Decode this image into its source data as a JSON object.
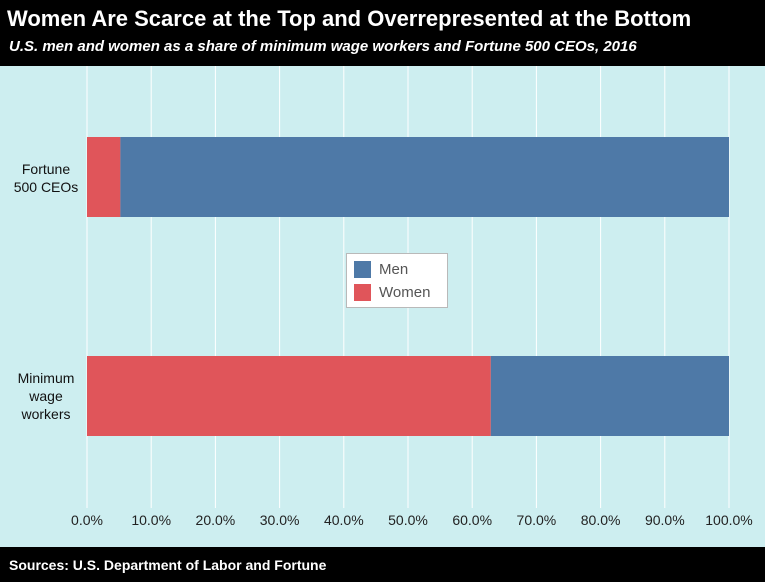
{
  "chart_data": {
    "type": "bar",
    "orientation": "horizontal",
    "stacked": true,
    "title": "Women Are Scarce at the Top and Overrepresented at the Bottom",
    "subtitle": "U.S. men and women as a share of minimum wage workers and Fortune 500 CEOs, 2016",
    "source": "Sources: U.S. Department of Labor and Fortune",
    "categories": [
      "Fortune\n500 CEOs",
      "Minimum\nwage\nworkers"
    ],
    "series": [
      {
        "name": "Women",
        "color": "#e0555a",
        "values": [
          5.2,
          62.9
        ]
      },
      {
        "name": "Men",
        "color": "#4e79a7",
        "values": [
          94.8,
          37.1
        ]
      }
    ],
    "xlim": [
      0,
      100
    ],
    "x_ticks": [
      0,
      10,
      20,
      30,
      40,
      50,
      60,
      70,
      80,
      90,
      100
    ],
    "x_tick_labels": [
      "0.0%",
      "10.0%",
      "20.0%",
      "30.0%",
      "40.0%",
      "50.0%",
      "60.0%",
      "70.0%",
      "80.0%",
      "90.0%",
      "100.0%"
    ],
    "legend": {
      "position": "center",
      "items": [
        {
          "label": "Men",
          "color": "#4e79a7"
        },
        {
          "label": "Women",
          "color": "#e0555a"
        }
      ]
    },
    "grid": true
  }
}
